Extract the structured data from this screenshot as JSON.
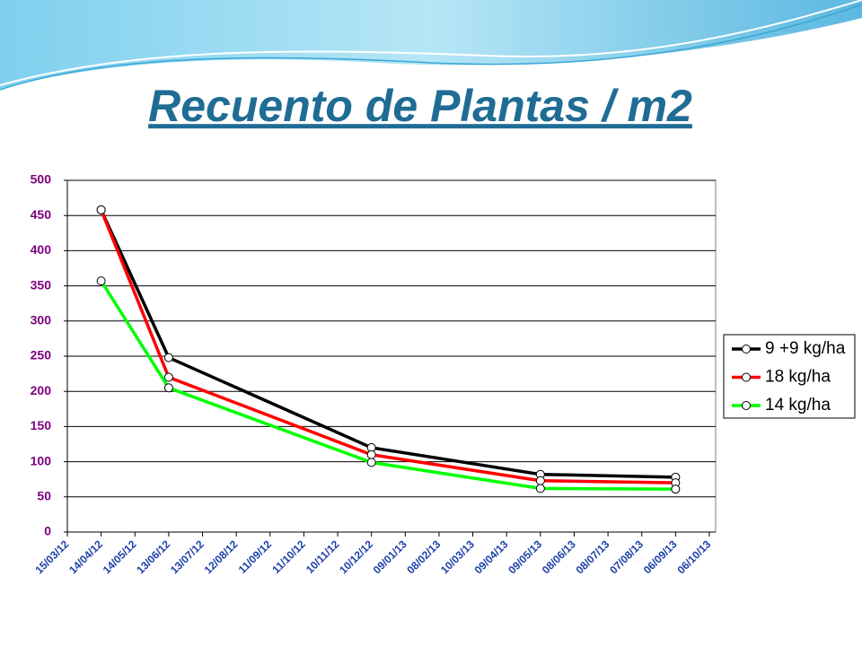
{
  "chart_data": {
    "type": "line",
    "title": "Recuento de Plantas / m2",
    "x": [
      "14/04/12",
      "13/06/12",
      "10/12/12",
      "09/05/13",
      "06/09/13"
    ],
    "series": [
      {
        "name": "9 +9 kg/ha",
        "color": "#000000",
        "values": [
          458,
          248,
          120,
          82,
          78
        ]
      },
      {
        "name": "18 kg/ha",
        "color": "#ff0000",
        "values": [
          458,
          220,
          110,
          73,
          70
        ]
      },
      {
        "name": "14 kg/ha",
        "color": "#00ff00",
        "values": [
          357,
          205,
          99,
          62,
          61
        ]
      }
    ],
    "xlim": [
      "15/03/12",
      "06/10/13"
    ],
    "xticks": [
      "15/03/12",
      "14/04/12",
      "14/05/12",
      "13/06/12",
      "13/07/12",
      "12/08/12",
      "11/09/12",
      "11/10/12",
      "10/11/12",
      "10/12/12",
      "09/01/13",
      "08/02/13",
      "10/03/13",
      "09/04/13",
      "09/05/13",
      "08/06/13",
      "08/07/13",
      "07/08/13",
      "06/09/13",
      "06/10/13"
    ],
    "ylim": [
      0,
      500
    ],
    "yticks": [
      0,
      50,
      100,
      150,
      200,
      250,
      300,
      350,
      400,
      450,
      500
    ],
    "grid": true,
    "legend": "right"
  }
}
